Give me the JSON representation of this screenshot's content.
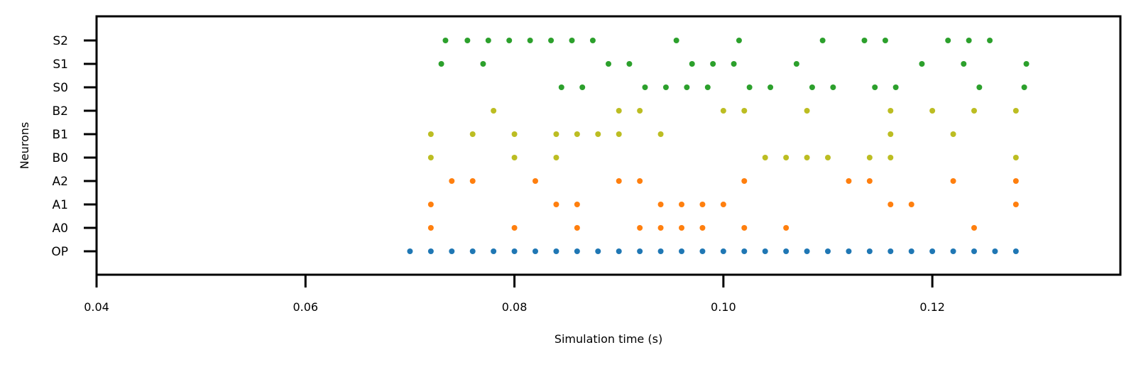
{
  "chart_data": {
    "type": "scatter",
    "xlabel": "Simulation time (s)",
    "ylabel": "Neurons",
    "xlim": [
      0.04,
      0.138
    ],
    "x_ticks": [
      "0.04",
      "0.06",
      "0.08",
      "0.10",
      "0.12"
    ],
    "categories": [
      "OP",
      "A0",
      "A1",
      "A2",
      "B0",
      "B1",
      "B2",
      "S0",
      "S1",
      "S2"
    ],
    "grid": false,
    "series": [
      {
        "neuron": "OP",
        "color": "#1f77b4",
        "x": [
          0.07,
          0.072,
          0.074,
          0.076,
          0.078,
          0.08,
          0.082,
          0.084,
          0.086,
          0.088,
          0.09,
          0.092,
          0.094,
          0.096,
          0.098,
          0.1,
          0.102,
          0.104,
          0.106,
          0.108,
          0.11,
          0.112,
          0.114,
          0.116,
          0.118,
          0.12,
          0.122,
          0.124,
          0.126,
          0.128
        ]
      },
      {
        "neuron": "A0",
        "color": "#ff7f0e",
        "x": [
          0.072,
          0.08,
          0.086,
          0.092,
          0.094,
          0.096,
          0.098,
          0.102,
          0.106,
          0.124
        ]
      },
      {
        "neuron": "A1",
        "color": "#ff7f0e",
        "x": [
          0.072,
          0.084,
          0.086,
          0.094,
          0.096,
          0.098,
          0.1,
          0.116,
          0.118,
          0.128
        ]
      },
      {
        "neuron": "A2",
        "color": "#ff7f0e",
        "x": [
          0.074,
          0.076,
          0.082,
          0.09,
          0.092,
          0.102,
          0.112,
          0.114,
          0.122,
          0.128
        ]
      },
      {
        "neuron": "B0",
        "color": "#bcbd22",
        "x": [
          0.072,
          0.08,
          0.084,
          0.104,
          0.106,
          0.108,
          0.11,
          0.114,
          0.116,
          0.128
        ]
      },
      {
        "neuron": "B1",
        "color": "#bcbd22",
        "x": [
          0.072,
          0.076,
          0.08,
          0.084,
          0.086,
          0.088,
          0.09,
          0.094,
          0.116,
          0.122
        ]
      },
      {
        "neuron": "B2",
        "color": "#bcbd22",
        "x": [
          0.078,
          0.09,
          0.092,
          0.1,
          0.102,
          0.108,
          0.116,
          0.12,
          0.124,
          0.128
        ]
      },
      {
        "neuron": "S0",
        "color": "#2ca02c",
        "x": [
          0.0845,
          0.0865,
          0.0925,
          0.0945,
          0.0965,
          0.0985,
          0.1025,
          0.1045,
          0.1085,
          0.1105,
          0.1145,
          0.1165,
          0.1245,
          0.1288
        ]
      },
      {
        "neuron": "S1",
        "color": "#2ca02c",
        "x": [
          0.073,
          0.077,
          0.089,
          0.091,
          0.097,
          0.099,
          0.101,
          0.107,
          0.119,
          0.123,
          0.129
        ]
      },
      {
        "neuron": "S2",
        "color": "#2ca02c",
        "x": [
          0.0734,
          0.0755,
          0.0775,
          0.0795,
          0.0815,
          0.0835,
          0.0855,
          0.0875,
          0.0955,
          0.1015,
          0.1095,
          0.1135,
          0.1155,
          0.1215,
          0.1235,
          0.1255
        ]
      }
    ]
  }
}
